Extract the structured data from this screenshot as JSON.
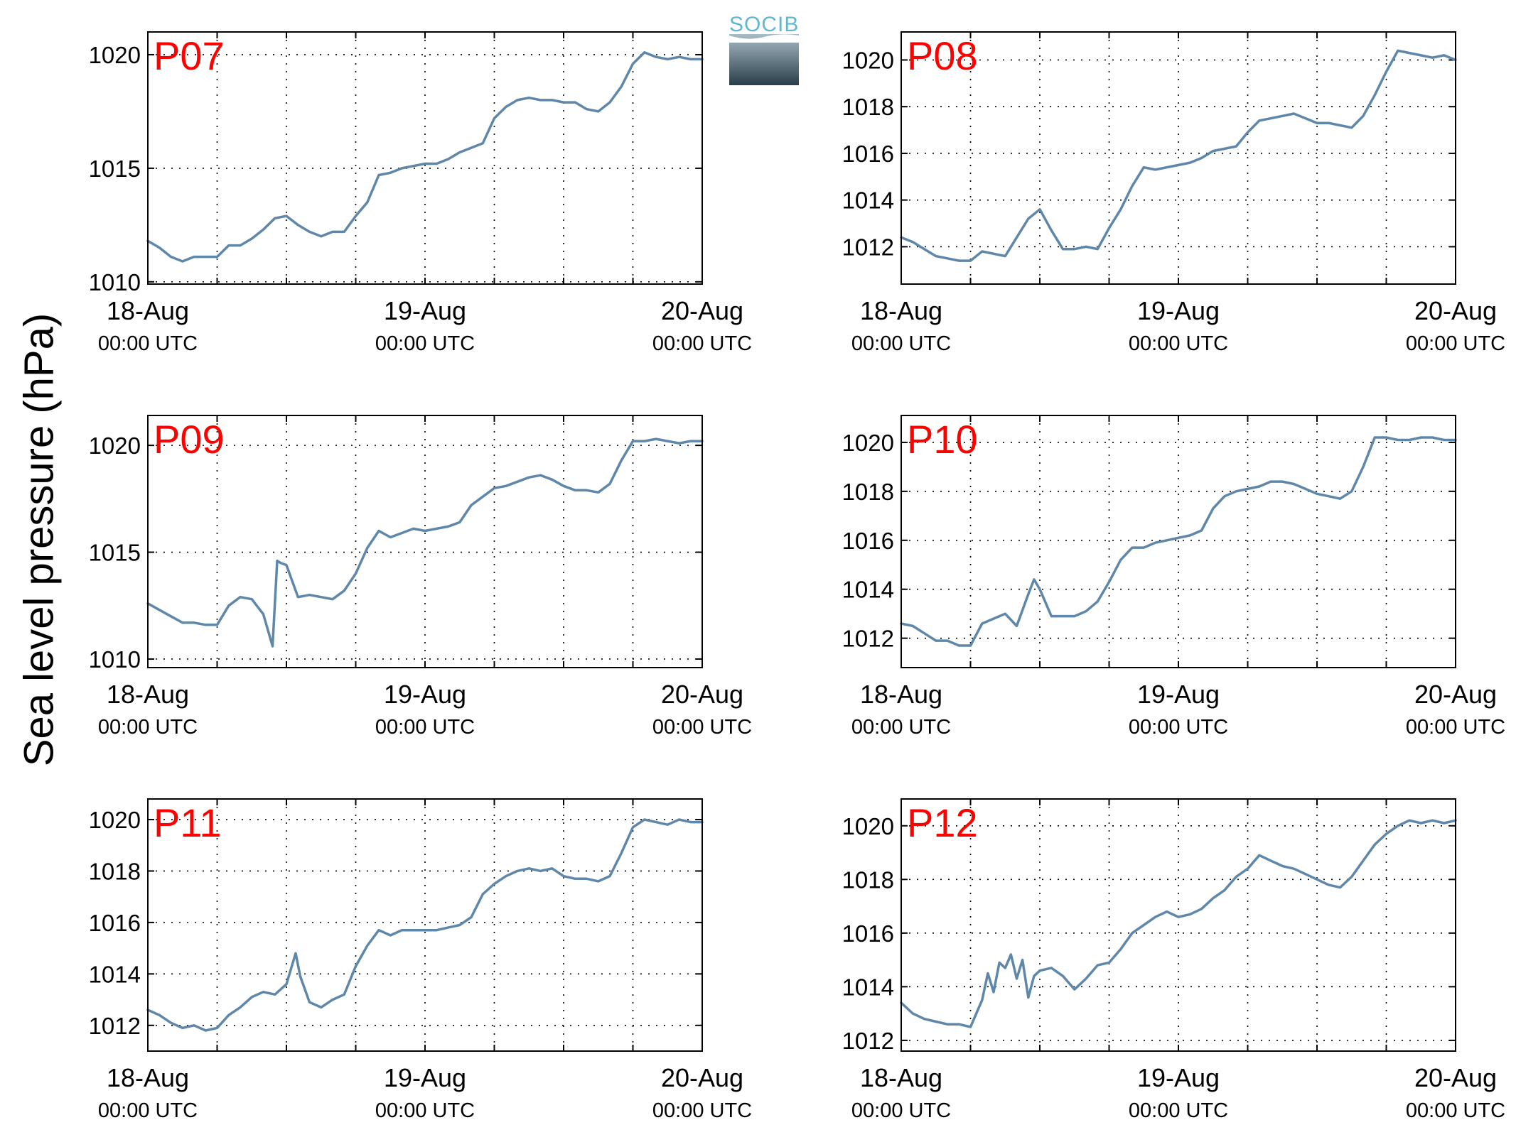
{
  "figure": {
    "ylabel": "Sea level pressure (hPa)",
    "logo_text": "SOCIB",
    "line_color": "#5e87a9",
    "title_color": "#ff0000"
  },
  "chart_data": [
    {
      "type": "line",
      "title": "P07",
      "xlim": [
        0,
        48
      ],
      "xticks": [
        0,
        24,
        48
      ],
      "xtick_labels": [
        [
          "18-Aug",
          "00:00 UTC"
        ],
        [
          "19-Aug",
          "00:00 UTC"
        ],
        [
          "20-Aug",
          "00:00 UTC"
        ]
      ],
      "grid_x": [
        6,
        12,
        18,
        30,
        36,
        42
      ],
      "ylim": [
        1009.9,
        1021.0
      ],
      "yticks": [
        1010,
        1015,
        1020
      ],
      "grid": true,
      "x": [
        0,
        1,
        2,
        3,
        4,
        5,
        6,
        7,
        8,
        9,
        10,
        11,
        12,
        13,
        14,
        15,
        16,
        17,
        18,
        19,
        20,
        21,
        22,
        23,
        24,
        25,
        26,
        27,
        28,
        29,
        30,
        31,
        32,
        33,
        34,
        35,
        36,
        37,
        38,
        39,
        40,
        41,
        42,
        43,
        44,
        45,
        46,
        47,
        48
      ],
      "y": [
        1011.8,
        1011.5,
        1011.1,
        1010.9,
        1011.1,
        1011.1,
        1011.1,
        1011.6,
        1011.6,
        1011.9,
        1012.3,
        1012.8,
        1012.9,
        1012.5,
        1012.2,
        1012.0,
        1012.2,
        1012.2,
        1012.9,
        1013.5,
        1014.7,
        1014.8,
        1015.0,
        1015.1,
        1015.2,
        1015.2,
        1015.4,
        1015.7,
        1015.9,
        1016.1,
        1017.2,
        1017.7,
        1018.0,
        1018.1,
        1018.0,
        1018.0,
        1017.9,
        1017.9,
        1017.6,
        1017.5,
        1017.9,
        1018.6,
        1019.6,
        1020.1,
        1019.9,
        1019.8,
        1019.9,
        1019.8,
        1019.8
      ]
    },
    {
      "type": "line",
      "title": "P08",
      "xlim": [
        0,
        48
      ],
      "xticks": [
        0,
        24,
        48
      ],
      "xtick_labels": [
        [
          "18-Aug",
          "00:00 UTC"
        ],
        [
          "19-Aug",
          "00:00 UTC"
        ],
        [
          "20-Aug",
          "00:00 UTC"
        ]
      ],
      "grid_x": [
        6,
        12,
        18,
        30,
        36,
        42
      ],
      "ylim": [
        1010.4,
        1021.2
      ],
      "yticks": [
        1012,
        1014,
        1016,
        1018,
        1020
      ],
      "grid": true,
      "x": [
        0,
        1,
        2,
        3,
        4,
        5,
        6,
        7,
        8,
        9,
        10,
        11,
        12,
        13,
        14,
        15,
        16,
        17,
        18,
        19,
        20,
        21,
        22,
        23,
        24,
        25,
        26,
        27,
        28,
        29,
        30,
        31,
        32,
        33,
        34,
        35,
        36,
        37,
        38,
        39,
        40,
        41,
        42,
        43,
        44,
        45,
        46,
        47,
        48
      ],
      "y": [
        1012.4,
        1012.2,
        1011.9,
        1011.6,
        1011.5,
        1011.4,
        1011.4,
        1011.8,
        1011.7,
        1011.6,
        1012.4,
        1013.2,
        1013.6,
        1012.7,
        1011.9,
        1011.9,
        1012.0,
        1011.9,
        1012.8,
        1013.6,
        1014.6,
        1015.4,
        1015.3,
        1015.4,
        1015.5,
        1015.6,
        1015.8,
        1016.1,
        1016.2,
        1016.3,
        1016.9,
        1017.4,
        1017.5,
        1017.6,
        1017.7,
        1017.5,
        1017.3,
        1017.3,
        1017.2,
        1017.1,
        1017.6,
        1018.5,
        1019.5,
        1020.4,
        1020.3,
        1020.2,
        1020.1,
        1020.2,
        1020.0
      ]
    },
    {
      "type": "line",
      "title": "P09",
      "xlim": [
        0,
        48
      ],
      "xticks": [
        0,
        24,
        48
      ],
      "xtick_labels": [
        [
          "18-Aug",
          "00:00 UTC"
        ],
        [
          "19-Aug",
          "00:00 UTC"
        ],
        [
          "20-Aug",
          "00:00 UTC"
        ]
      ],
      "grid_x": [
        6,
        12,
        18,
        30,
        36,
        42
      ],
      "ylim": [
        1009.6,
        1021.4
      ],
      "yticks": [
        1010,
        1015,
        1020
      ],
      "grid": true,
      "x": [
        0,
        1,
        2,
        3,
        4,
        5,
        6,
        7,
        8,
        9,
        10,
        10.8,
        11.2,
        11.5,
        12,
        13,
        14,
        15,
        16,
        17,
        18,
        19,
        20,
        21,
        22,
        23,
        24,
        25,
        26,
        27,
        28,
        29,
        30,
        31,
        32,
        33,
        34,
        35,
        36,
        37,
        38,
        39,
        40,
        41,
        42,
        43,
        44,
        45,
        46,
        47,
        48
      ],
      "y": [
        1012.6,
        1012.3,
        1012.0,
        1011.7,
        1011.7,
        1011.6,
        1011.6,
        1012.5,
        1012.9,
        1012.8,
        1012.1,
        1010.6,
        1014.6,
        1014.5,
        1014.4,
        1012.9,
        1013.0,
        1012.9,
        1012.8,
        1013.2,
        1014.0,
        1015.2,
        1016.0,
        1015.7,
        1015.9,
        1016.1,
        1016.0,
        1016.1,
        1016.2,
        1016.4,
        1017.2,
        1017.6,
        1018.0,
        1018.1,
        1018.3,
        1018.5,
        1018.6,
        1018.4,
        1018.1,
        1017.9,
        1017.9,
        1017.8,
        1018.2,
        1019.3,
        1020.2,
        1020.2,
        1020.3,
        1020.2,
        1020.1,
        1020.2,
        1020.2
      ]
    },
    {
      "type": "line",
      "title": "P10",
      "xlim": [
        0,
        48
      ],
      "xticks": [
        0,
        24,
        48
      ],
      "xtick_labels": [
        [
          "18-Aug",
          "00:00 UTC"
        ],
        [
          "19-Aug",
          "00:00 UTC"
        ],
        [
          "20-Aug",
          "00:00 UTC"
        ]
      ],
      "grid_x": [
        6,
        12,
        18,
        30,
        36,
        42
      ],
      "ylim": [
        1010.8,
        1021.1
      ],
      "yticks": [
        1012,
        1014,
        1016,
        1018,
        1020
      ],
      "grid": true,
      "x": [
        0,
        1,
        2,
        3,
        4,
        5,
        6,
        7,
        8,
        9,
        10,
        11,
        11.5,
        12,
        13,
        14,
        15,
        16,
        17,
        18,
        19,
        20,
        21,
        22,
        23,
        24,
        25,
        26,
        27,
        28,
        29,
        30,
        31,
        32,
        33,
        34,
        35,
        36,
        37,
        38,
        39,
        40,
        41,
        42,
        43,
        44,
        45,
        46,
        47,
        48
      ],
      "y": [
        1012.6,
        1012.5,
        1012.2,
        1011.9,
        1011.9,
        1011.7,
        1011.7,
        1012.6,
        1012.8,
        1013.0,
        1012.5,
        1013.8,
        1014.4,
        1014.0,
        1012.9,
        1012.9,
        1012.9,
        1013.1,
        1013.5,
        1014.3,
        1015.2,
        1015.7,
        1015.7,
        1015.9,
        1016.0,
        1016.1,
        1016.2,
        1016.4,
        1017.3,
        1017.8,
        1018.0,
        1018.1,
        1018.2,
        1018.4,
        1018.4,
        1018.3,
        1018.1,
        1017.9,
        1017.8,
        1017.7,
        1018.0,
        1019.0,
        1020.2,
        1020.2,
        1020.1,
        1020.1,
        1020.2,
        1020.2,
        1020.1,
        1020.1
      ]
    },
    {
      "type": "line",
      "title": "P11",
      "xlim": [
        0,
        48
      ],
      "xticks": [
        0,
        24,
        48
      ],
      "xtick_labels": [
        [
          "18-Aug",
          "00:00 UTC"
        ],
        [
          "19-Aug",
          "00:00 UTC"
        ],
        [
          "20-Aug",
          "00:00 UTC"
        ]
      ],
      "grid_x": [
        6,
        12,
        18,
        30,
        36,
        42
      ],
      "ylim": [
        1011.0,
        1020.8
      ],
      "yticks": [
        1012,
        1014,
        1016,
        1018,
        1020
      ],
      "grid": true,
      "x": [
        0,
        1,
        2,
        3,
        4,
        5,
        6,
        7,
        8,
        9,
        10,
        11,
        12,
        12.8,
        13.2,
        14,
        15,
        16,
        17,
        18,
        19,
        20,
        21,
        22,
        23,
        24,
        25,
        26,
        27,
        28,
        29,
        30,
        31,
        32,
        33,
        34,
        35,
        36,
        37,
        38,
        39,
        40,
        41,
        42,
        43,
        44,
        45,
        46,
        47,
        48
      ],
      "y": [
        1012.6,
        1012.4,
        1012.1,
        1011.9,
        1012.0,
        1011.8,
        1011.9,
        1012.4,
        1012.7,
        1013.1,
        1013.3,
        1013.2,
        1013.6,
        1014.8,
        1013.9,
        1012.9,
        1012.7,
        1013.0,
        1013.2,
        1014.3,
        1015.1,
        1015.7,
        1015.5,
        1015.7,
        1015.7,
        1015.7,
        1015.7,
        1015.8,
        1015.9,
        1016.2,
        1017.1,
        1017.5,
        1017.8,
        1018.0,
        1018.1,
        1018.0,
        1018.1,
        1017.8,
        1017.7,
        1017.7,
        1017.6,
        1017.8,
        1018.7,
        1019.7,
        1020.0,
        1019.9,
        1019.8,
        1020.0,
        1019.9,
        1019.9
      ]
    },
    {
      "type": "line",
      "title": "P12",
      "xlim": [
        0,
        48
      ],
      "xticks": [
        0,
        24,
        48
      ],
      "xtick_labels": [
        [
          "18-Aug",
          "00:00 UTC"
        ],
        [
          "19-Aug",
          "00:00 UTC"
        ],
        [
          "20-Aug",
          "00:00 UTC"
        ]
      ],
      "grid_x": [
        6,
        12,
        18,
        30,
        36,
        42
      ],
      "ylim": [
        1011.6,
        1021.0
      ],
      "yticks": [
        1012,
        1014,
        1016,
        1018,
        1020
      ],
      "grid": true,
      "x": [
        0,
        1,
        2,
        3,
        4,
        5,
        6,
        7,
        7.5,
        8,
        8.5,
        9,
        9.5,
        10,
        10.5,
        11,
        11.5,
        12,
        13,
        14,
        15,
        16,
        17,
        18,
        19,
        20,
        21,
        22,
        23,
        24,
        25,
        26,
        27,
        28,
        29,
        30,
        31,
        32,
        33,
        34,
        35,
        36,
        37,
        38,
        39,
        40,
        41,
        42,
        43,
        44,
        45,
        46,
        47,
        48
      ],
      "y": [
        1013.4,
        1013.0,
        1012.8,
        1012.7,
        1012.6,
        1012.6,
        1012.5,
        1013.5,
        1014.5,
        1013.8,
        1014.9,
        1014.7,
        1015.2,
        1014.3,
        1015.0,
        1013.6,
        1014.4,
        1014.6,
        1014.7,
        1014.4,
        1013.9,
        1014.3,
        1014.8,
        1014.9,
        1015.4,
        1016.0,
        1016.3,
        1016.6,
        1016.8,
        1016.6,
        1016.7,
        1016.9,
        1017.3,
        1017.6,
        1018.1,
        1018.4,
        1018.9,
        1018.7,
        1018.5,
        1018.4,
        1018.2,
        1018.0,
        1017.8,
        1017.7,
        1018.1,
        1018.7,
        1019.3,
        1019.7,
        1020.0,
        1020.2,
        1020.1,
        1020.2,
        1020.1,
        1020.2
      ]
    }
  ]
}
